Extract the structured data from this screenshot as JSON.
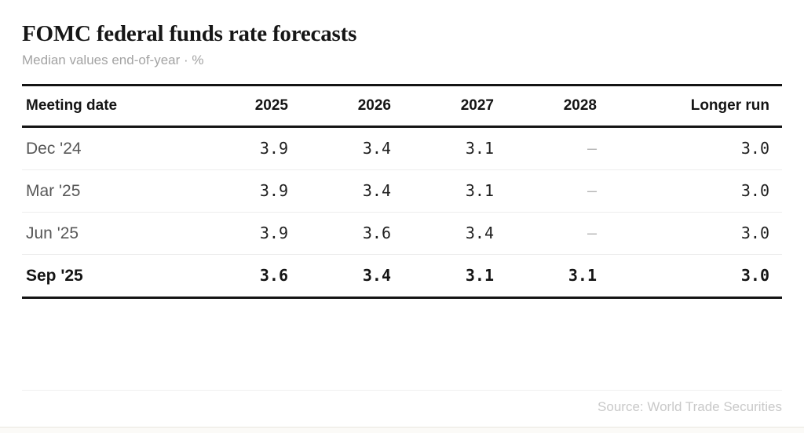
{
  "header": {
    "title": "FOMC federal funds rate forecasts",
    "subtitle": "Median values end-of-year · %"
  },
  "table": {
    "columns": [
      "Meeting date",
      "2025",
      "2026",
      "2027",
      "2028",
      "Longer run"
    ],
    "missing_marker": "—",
    "rows": [
      {
        "meeting": "Dec '24",
        "values": [
          "3.9",
          "3.4",
          "3.1",
          "—",
          "3.0"
        ],
        "highlight": false
      },
      {
        "meeting": "Mar '25",
        "values": [
          "3.9",
          "3.4",
          "3.1",
          "—",
          "3.0"
        ],
        "highlight": false
      },
      {
        "meeting": "Jun '25",
        "values": [
          "3.9",
          "3.6",
          "3.4",
          "—",
          "3.0"
        ],
        "highlight": false
      },
      {
        "meeting": "Sep '25",
        "values": [
          "3.6",
          "3.4",
          "3.1",
          "3.1",
          "3.0"
        ],
        "highlight": true
      }
    ]
  },
  "footer": {
    "source": "Source: World Trade Securities"
  },
  "colors": {
    "rule_strong": "#141414",
    "rule_light": "#ededed",
    "text_primary": "#161616",
    "text_row_label": "#575757",
    "text_muted": "#a3a3a3",
    "text_source": "#c9c9c9",
    "background": "#ffffff"
  },
  "chart_data": {
    "type": "table",
    "title": "FOMC federal funds rate forecasts",
    "subtitle": "Median values end-of-year · %",
    "columns": [
      "Meeting date",
      "2025",
      "2026",
      "2027",
      "2028",
      "Longer run"
    ],
    "rows": [
      [
        "Dec '24",
        3.9,
        3.4,
        3.1,
        null,
        3.0
      ],
      [
        "Mar '25",
        3.9,
        3.4,
        3.1,
        null,
        3.0
      ],
      [
        "Jun '25",
        3.9,
        3.6,
        3.4,
        null,
        3.0
      ],
      [
        "Sep '25",
        3.6,
        3.4,
        3.1,
        3.1,
        3.0
      ]
    ],
    "highlighted_row": "Sep '25",
    "missing_value_marker": "—",
    "source": "Source: World Trade Securities"
  }
}
